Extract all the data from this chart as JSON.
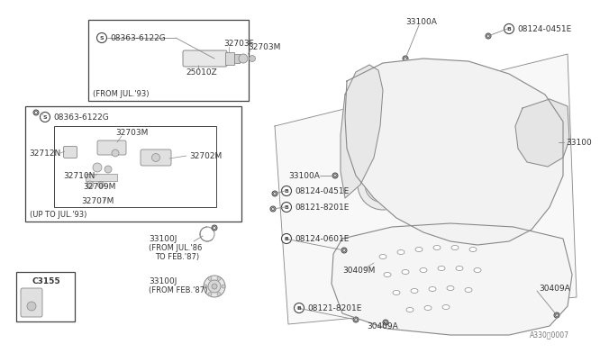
{
  "bg_color": "#ffffff",
  "line_color": "#888888",
  "dark_line": "#444444",
  "text_color": "#333333",
  "labels": {
    "top_box_caption": "(FROM JUL.'93)",
    "bottom_box_caption": "(UP TO JUL.'93)",
    "c3155": "C3155",
    "s08363_top": "08363-6122G",
    "s08363_bot": "08363-6122G",
    "part_25010z": "25010Z",
    "part_32703f": "32703F",
    "part_32703m_top": "32703M",
    "part_32703m_inner": "32703M",
    "part_32702m": "32702M",
    "part_32712n": "32712N",
    "part_32710n": "32710N",
    "part_32709m": "32709M",
    "part_32707m": "32707M",
    "part_33100a_top": "33100A",
    "part_33100a_mid": "33100A",
    "part_33100": "33100",
    "part_33100j_1": "33100J",
    "part_33100j_1_sub": "(FROM JUL.'86\nTO FEB.'87)",
    "part_33100j_2": "33100J",
    "part_33100j_2_sub": "(FROM FEB.'87)",
    "part_b08124_0451e_top": "08124-0451E",
    "part_b08124_0451e_mid": "08124-0451E",
    "part_b08121_8201e_top": "08121-8201E",
    "part_b08124_0601e": "08124-0601E",
    "part_b08121_8201e_bot": "08121-8201E",
    "part_30409m": "30409M",
    "part_30409a_right": "30409A",
    "part_30409a_bot": "30409A",
    "diagram_ref": "A330・0007"
  },
  "font_size_label": 6.5,
  "font_size_small": 5.5,
  "font_size_caption": 6.0
}
